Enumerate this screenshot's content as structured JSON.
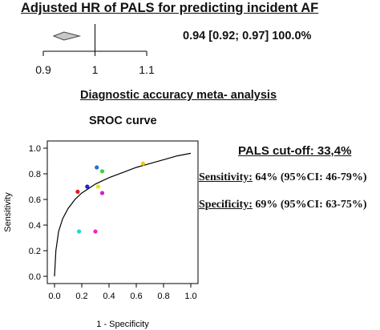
{
  "forest": {
    "title": "Adjusted HR of PALS for predicting incident AF",
    "values_label": "0.94  [0.92; 0.97]  100.0%",
    "ticks": [
      "0.9",
      "1",
      "1.1"
    ],
    "estimate": 0.94,
    "ci": [
      0.92,
      0.97
    ],
    "axis_range": [
      0.9,
      1.1
    ],
    "reference_line": 1,
    "marker_fill": "#c8c8c8"
  },
  "meta_title": "Diagnostic accuracy meta- analysis",
  "sroc_title": "SROC curve",
  "cutoff": "PALS cut-off: 33,4%",
  "sensitivity": {
    "label": "Sensitivity:",
    "value": " 64% (95%CI: 46-79%)"
  },
  "specificity": {
    "label": "Specificity:",
    "value": " 69% (95%CI: 63-75%)"
  },
  "chart_data": {
    "type": "scatter",
    "title": "SROC curve",
    "xlabel": "1 - Specificity",
    "ylabel": "Sensitivity",
    "xlim": [
      0,
      1
    ],
    "ylim": [
      0,
      1
    ],
    "xticks": [
      "0.0",
      "0.2",
      "0.4",
      "0.6",
      "0.8",
      "1.0"
    ],
    "yticks": [
      "0.0",
      "0.2",
      "0.4",
      "0.6",
      "0.8",
      "1.0"
    ],
    "grid": false,
    "points": [
      {
        "x": 0.31,
        "y": 0.85,
        "color": "#1e74d6"
      },
      {
        "x": 0.35,
        "y": 0.82,
        "color": "#38d638"
      },
      {
        "x": 0.65,
        "y": 0.88,
        "color": "#f5c518"
      },
      {
        "x": 0.24,
        "y": 0.7,
        "color": "#2222cc"
      },
      {
        "x": 0.32,
        "y": 0.7,
        "color": "#f0e01a"
      },
      {
        "x": 0.35,
        "y": 0.65,
        "color": "#cc22cc"
      },
      {
        "x": 0.17,
        "y": 0.66,
        "color": "#e01b1b"
      },
      {
        "x": 0.18,
        "y": 0.35,
        "color": "#22d6c8"
      },
      {
        "x": 0.3,
        "y": 0.35,
        "color": "#ee2ab8"
      }
    ],
    "curve": [
      [
        0,
        0
      ],
      [
        0.01,
        0.2
      ],
      [
        0.03,
        0.35
      ],
      [
        0.06,
        0.45
      ],
      [
        0.1,
        0.53
      ],
      [
        0.15,
        0.6
      ],
      [
        0.2,
        0.65
      ],
      [
        0.3,
        0.72
      ],
      [
        0.4,
        0.77
      ],
      [
        0.5,
        0.81
      ],
      [
        0.6,
        0.85
      ],
      [
        0.7,
        0.88
      ],
      [
        0.8,
        0.91
      ],
      [
        0.9,
        0.94
      ],
      [
        1.0,
        0.96
      ]
    ]
  }
}
